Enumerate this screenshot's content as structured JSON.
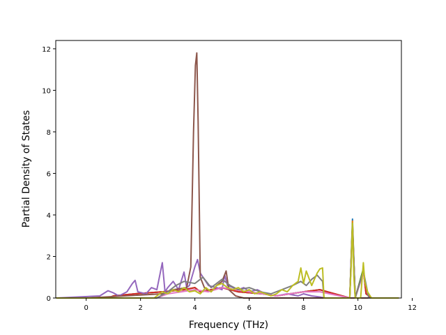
{
  "chart_data": {
    "type": "line",
    "title": "",
    "xlabel": "Frequency (THz)",
    "ylabel": "Partial Density of States",
    "xlim": [
      -1.12,
      11.6
    ],
    "ylim": [
      0,
      12.4
    ],
    "xticks": [
      0,
      2,
      4,
      6,
      8,
      10,
      12
    ],
    "yticks": [
      0,
      2,
      4,
      6,
      8,
      10,
      12
    ],
    "xtick_labels": [
      "0",
      "2",
      "4",
      "6",
      "8",
      "10",
      "12"
    ],
    "ytick_labels": [
      "0",
      "2",
      "4",
      "6",
      "8",
      "10",
      "12"
    ],
    "grid": false,
    "legend": "none",
    "series": [
      {
        "color": "#1f77b4",
        "x": [
          -1.1,
          0.8,
          1.0,
          1.8,
          2.8,
          3.6,
          4.0,
          4.2,
          5.0,
          5.6,
          6.5,
          7.0,
          7.5,
          8.0,
          8.6,
          9.7,
          9.8,
          9.9,
          10.2,
          10.3,
          10.5,
          11.5
        ],
        "y": [
          0,
          0,
          0.1,
          0.2,
          0.3,
          0.4,
          0.5,
          0.3,
          0.5,
          0.3,
          0.2,
          0.1,
          0.2,
          0.3,
          0.4,
          0,
          3.8,
          0,
          1.4,
          0.2,
          0,
          0
        ]
      },
      {
        "color": "#ff7f0e",
        "x": [
          -1.1,
          0.8,
          1.0,
          1.8,
          2.8,
          3.6,
          4.0,
          4.2,
          5.0,
          5.6,
          6.5,
          7.0,
          7.5,
          8.0,
          8.6,
          9.7,
          9.8,
          9.9,
          10.2,
          10.3,
          10.5,
          11.5
        ],
        "y": [
          0,
          0,
          0.1,
          0.2,
          0.3,
          0.4,
          0.5,
          0.3,
          0.5,
          0.3,
          0.2,
          0.1,
          0.2,
          0.3,
          0.4,
          0,
          3.7,
          0,
          1.4,
          0.2,
          0,
          0
        ]
      },
      {
        "color": "#2ca02c",
        "x": [
          -1.1,
          0.8,
          1.0,
          1.8,
          2.8,
          3.6,
          4.0,
          4.2,
          5.0,
          5.6,
          6.5,
          7.0,
          7.5,
          8.0,
          8.6,
          9.7,
          9.8,
          9.9,
          10.2,
          10.3,
          10.5,
          11.5
        ],
        "y": [
          0,
          0,
          0.1,
          0.2,
          0.3,
          0.4,
          0.5,
          0.3,
          0.5,
          0.3,
          0.2,
          0.1,
          0.2,
          0.3,
          0.4,
          0,
          3.6,
          0,
          1.4,
          0.2,
          0,
          0
        ]
      },
      {
        "color": "#d62728",
        "x": [
          -1.1,
          0.8,
          1.0,
          1.8,
          2.8,
          3.6,
          4.0,
          4.2,
          5.0,
          5.6,
          6.5,
          7.0,
          7.5,
          8.0,
          8.6,
          9.7,
          9.8,
          9.9,
          10.2,
          10.3,
          10.5,
          11.5
        ],
        "y": [
          0,
          0,
          0.1,
          0.2,
          0.3,
          0.4,
          0.5,
          0.3,
          0.5,
          0.3,
          0.2,
          0.1,
          0.2,
          0.3,
          0.4,
          0,
          3.5,
          0,
          1.3,
          0.2,
          0,
          0
        ]
      },
      {
        "color": "#9467bd",
        "x": [
          -1.1,
          0.5,
          0.8,
          1.0,
          1.2,
          1.5,
          1.7,
          1.8,
          1.9,
          2.2,
          2.4,
          2.6,
          2.8,
          2.9,
          3.0,
          3.2,
          3.4,
          3.6,
          3.7,
          3.8,
          4.0,
          4.1,
          4.2,
          4.5,
          4.8,
          5.0,
          5.1,
          5.2,
          5.4,
          5.6,
          5.8,
          6.0,
          6.3,
          6.6,
          7.0,
          7.4,
          7.8,
          8.0,
          8.3,
          8.6,
          8.8,
          11.5
        ],
        "y": [
          0,
          0.1,
          0.35,
          0.25,
          0.1,
          0.3,
          0.7,
          0.85,
          0.3,
          0.2,
          0.5,
          0.4,
          1.7,
          0.3,
          0.5,
          0.8,
          0.4,
          1.25,
          0.5,
          0.6,
          1.5,
          1.85,
          1.2,
          0.6,
          0.5,
          0.4,
          1.1,
          0.6,
          0.5,
          0.4,
          0.5,
          0.3,
          0.4,
          0.2,
          0.1,
          0.2,
          0.1,
          0.2,
          0.1,
          0.05,
          0,
          0
        ]
      },
      {
        "color": "#8c564b",
        "x": [
          -1.1,
          0.0,
          2.8,
          3.2,
          3.7,
          3.85,
          3.95,
          4.02,
          4.07,
          4.12,
          4.2,
          4.35,
          4.6,
          4.8,
          5.0,
          5.15,
          5.25,
          5.5,
          5.8,
          11.5
        ],
        "y": [
          0,
          0,
          0.2,
          0.4,
          0.5,
          1.5,
          8.0,
          11.2,
          11.8,
          8.5,
          1.0,
          0.5,
          0.3,
          0.6,
          0.8,
          1.3,
          0.4,
          0.1,
          0,
          0
        ]
      },
      {
        "color": "#e377c2",
        "x": [
          -1.1,
          2.6,
          3.0,
          3.5,
          4.0,
          4.5,
          5.0,
          5.5,
          6.0,
          6.5,
          7.0,
          7.5,
          8.0,
          8.6,
          9.7,
          9.8,
          9.9,
          10.2,
          10.4,
          11.5
        ],
        "y": [
          0,
          0,
          0.2,
          0.3,
          0.4,
          0.3,
          0.5,
          0.4,
          0.3,
          0.2,
          0.1,
          0.2,
          0.3,
          0.3,
          0,
          3.4,
          0,
          1.2,
          0,
          0
        ]
      },
      {
        "color": "#7f7f7f",
        "x": [
          -1.1,
          2.6,
          3.0,
          3.3,
          3.6,
          4.0,
          4.3,
          4.6,
          5.0,
          5.3,
          5.6,
          6.0,
          6.4,
          6.8,
          7.2,
          7.6,
          7.9,
          8.1,
          8.3,
          8.5,
          8.7,
          8.75,
          9.7,
          9.8,
          9.9,
          10.2,
          10.4,
          11.5
        ],
        "y": [
          0,
          0,
          0.3,
          0.6,
          0.8,
          0.7,
          1.0,
          0.5,
          0.9,
          0.6,
          0.4,
          0.5,
          0.3,
          0.2,
          0.4,
          0.6,
          0.8,
          0.6,
          0.9,
          1.1,
          0.8,
          0,
          0,
          3.5,
          0,
          1.3,
          0,
          0
        ]
      },
      {
        "color": "#bcbd22",
        "x": [
          -1.1,
          2.5,
          2.8,
          3.0,
          3.2,
          3.4,
          3.6,
          3.8,
          4.0,
          4.2,
          4.4,
          4.6,
          4.8,
          5.0,
          5.2,
          5.4,
          5.6,
          5.8,
          6.0,
          6.2,
          6.4,
          6.6,
          6.8,
          7.0,
          7.2,
          7.4,
          7.6,
          7.8,
          7.9,
          8.0,
          8.1,
          8.3,
          8.5,
          8.6,
          8.7,
          8.75,
          9.7,
          9.75,
          9.8,
          9.85,
          9.9,
          10.1,
          10.2,
          10.25,
          10.35,
          10.5,
          11.5
        ],
        "y": [
          0,
          0,
          0.3,
          0.2,
          0.4,
          0.3,
          0.5,
          0.3,
          0.35,
          0.2,
          0.5,
          0.3,
          0.6,
          0.7,
          0.5,
          0.4,
          0.5,
          0.3,
          0.4,
          0.2,
          0.3,
          0.2,
          0.1,
          0.2,
          0.4,
          0.3,
          0.6,
          0.8,
          1.45,
          0.7,
          1.3,
          0.6,
          1.2,
          1.4,
          1.45,
          0,
          0,
          1.5,
          3.6,
          1.0,
          0,
          0,
          1.7,
          0.8,
          0.3,
          0,
          0
        ]
      }
    ]
  }
}
